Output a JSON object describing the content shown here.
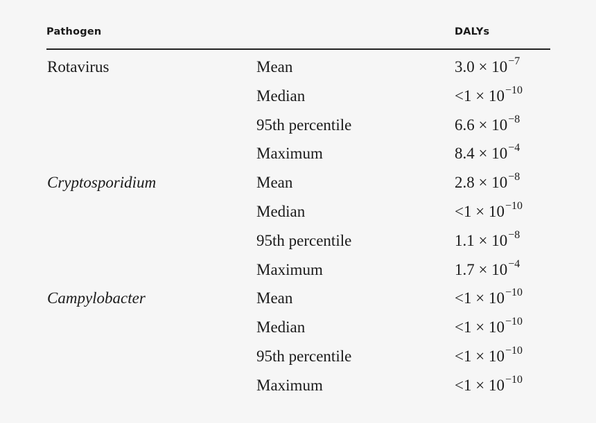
{
  "header": {
    "pathogen": "Pathogen",
    "dalys": "DALYs"
  },
  "rows": [
    {
      "pathogen": "Rotavirus",
      "italic": false,
      "stat": "Mean",
      "value_base": "3.0 × 10",
      "value_exp": "−7"
    },
    {
      "pathogen": "",
      "italic": false,
      "stat": "Median",
      "value_base": "<1 × 10",
      "value_exp": "−10"
    },
    {
      "pathogen": "",
      "italic": false,
      "stat": "95th percentile",
      "value_base": "6.6 × 10",
      "value_exp": "−8"
    },
    {
      "pathogen": "",
      "italic": false,
      "stat": "Maximum",
      "value_base": "8.4 × 10",
      "value_exp": "−4"
    },
    {
      "pathogen": "Cryptosporidium",
      "italic": true,
      "stat": "Mean",
      "value_base": "2.8 × 10",
      "value_exp": "−8"
    },
    {
      "pathogen": "",
      "italic": true,
      "stat": "Median",
      "value_base": "<1 × 10",
      "value_exp": "−10"
    },
    {
      "pathogen": "",
      "italic": true,
      "stat": "95th percentile",
      "value_base": "1.1 × 10",
      "value_exp": "−8"
    },
    {
      "pathogen": "",
      "italic": true,
      "stat": "Maximum",
      "value_base": "1.7 × 10",
      "value_exp": "−4"
    },
    {
      "pathogen": "Campylobacter",
      "italic": true,
      "stat": "Mean",
      "value_base": "<1 × 10",
      "value_exp": "−10"
    },
    {
      "pathogen": "",
      "italic": true,
      "stat": "Median",
      "value_base": "<1 × 10",
      "value_exp": "−10"
    },
    {
      "pathogen": "",
      "italic": true,
      "stat": "95th percentile",
      "value_base": "<1 × 10",
      "value_exp": "−10"
    },
    {
      "pathogen": "",
      "italic": true,
      "stat": "Maximum",
      "value_base": "<1 × 10",
      "value_exp": "−10"
    }
  ]
}
